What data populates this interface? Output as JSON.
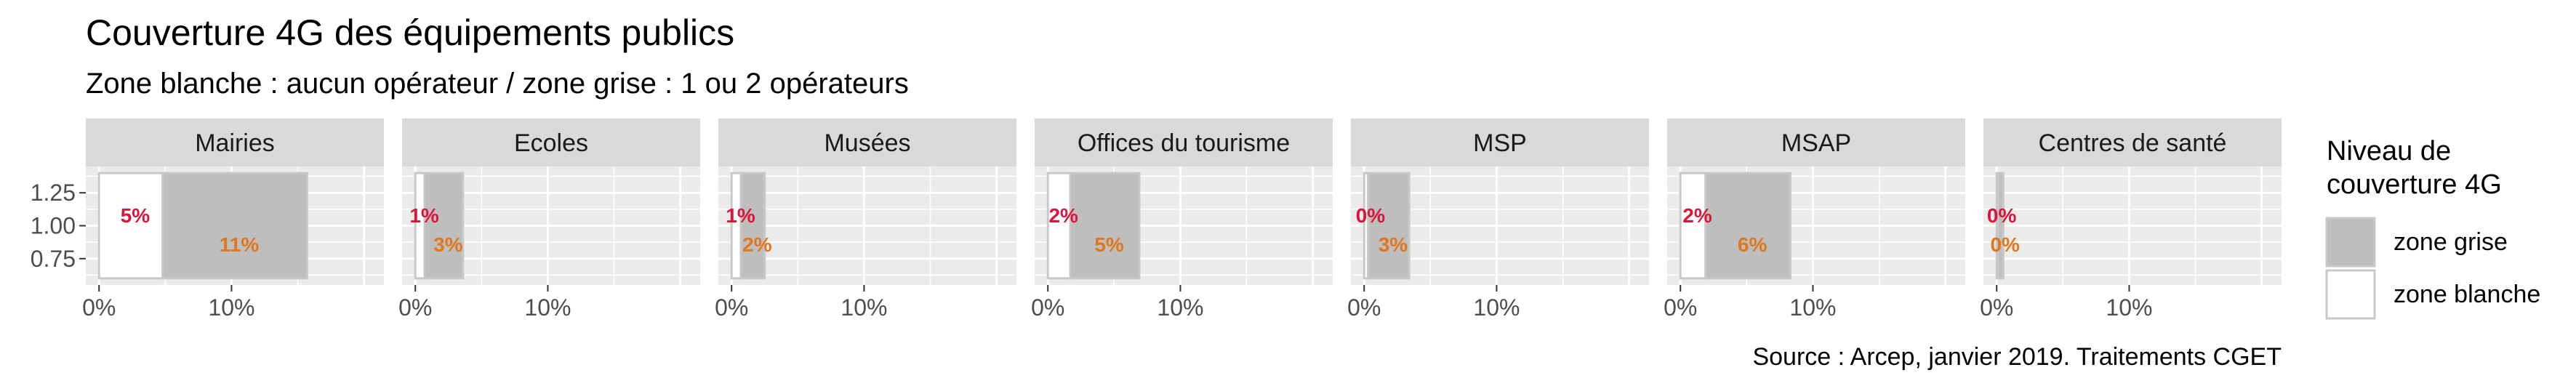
{
  "chart_data": {
    "type": "bar",
    "title": "Couverture 4G des équipements publics",
    "subtitle": "Zone blanche : aucun opérateur / zone grise : 1 ou 2 opérateurs",
    "caption": "Source : Arcep, janvier 2019. Traitements CGET",
    "xlim": [
      -0.01,
      0.215
    ],
    "ylim": [
      0.55,
      1.45
    ],
    "x_ticks": [
      0,
      0.1
    ],
    "x_tick_labels": [
      "0%",
      "10%"
    ],
    "y_ticks": [
      0.75,
      1.0,
      1.25
    ],
    "y_tick_labels": [
      "0.75",
      "1.00",
      "1.25"
    ],
    "grid": true,
    "legend": {
      "title_lines": [
        "Niveau de",
        "couverture 4G"
      ],
      "position": "right",
      "items": [
        {
          "name": "zone grise",
          "color": "#bebebe"
        },
        {
          "name": "zone blanche",
          "color": "#ffffff"
        }
      ]
    },
    "colors": {
      "blanche_label": "#dc143c",
      "grise_label": "#e0771b",
      "strip": "#d9d9d9",
      "panel": "#ebebeb"
    },
    "panels": [
      {
        "name": "Mairies",
        "zone_blanche": 0.048,
        "zone_grise": 0.109,
        "label_blanche": "5%",
        "label_grise": "11%"
      },
      {
        "name": "Ecoles",
        "zone_blanche": 0.007,
        "zone_grise": 0.029,
        "label_blanche": "1%",
        "label_grise": "3%"
      },
      {
        "name": "Musées",
        "zone_blanche": 0.007,
        "zone_grise": 0.018,
        "label_blanche": "1%",
        "label_grise": "2%"
      },
      {
        "name": "Offices du tourisme",
        "zone_blanche": 0.017,
        "zone_grise": 0.052,
        "label_blanche": "2%",
        "label_grise": "5%"
      },
      {
        "name": "MSP",
        "zone_blanche": 0.003,
        "zone_grise": 0.031,
        "label_blanche": "0%",
        "label_grise": "3%"
      },
      {
        "name": "MSAP",
        "zone_blanche": 0.019,
        "zone_grise": 0.064,
        "label_blanche": "2%",
        "label_grise": "6%"
      },
      {
        "name": "Centres de santé",
        "zone_blanche": 0.001,
        "zone_grise": 0.004,
        "label_blanche": "0%",
        "label_grise": "0%"
      }
    ]
  }
}
